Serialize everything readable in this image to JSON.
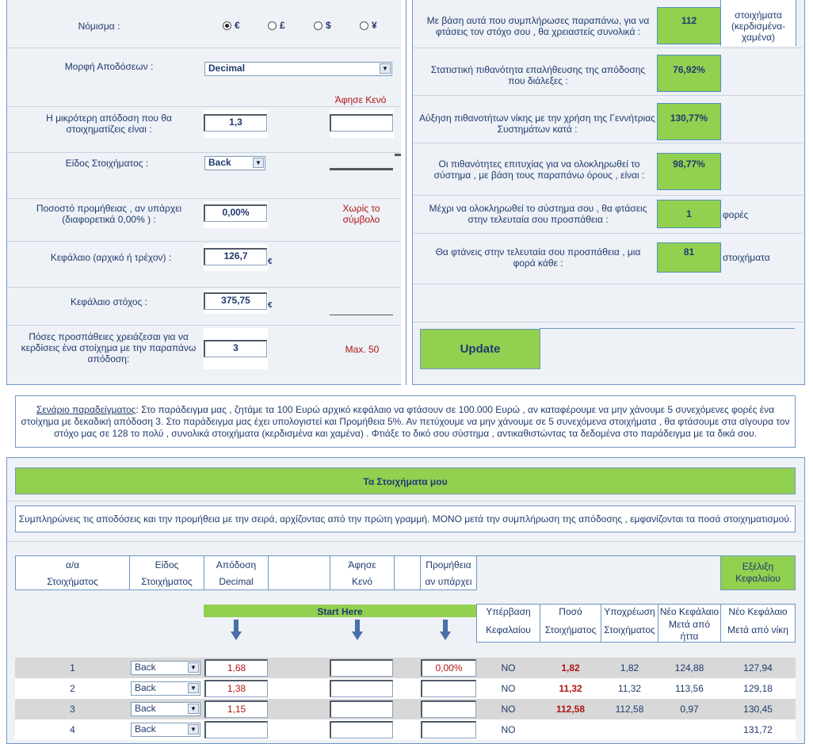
{
  "left_form": {
    "currency_label": "Νόμισμα :",
    "currency_options": [
      "€",
      "£",
      "$",
      "¥"
    ],
    "odds_format_label": "Μορφή Αποδόσεων :",
    "odds_format_value": "Decimal",
    "leave_blank_label": "Άφησε Κενό",
    "min_odds_label": "Η μικρότερη απόδοση που θα στοιχηματίζεις είναι :",
    "min_odds_value": "1,3",
    "bet_type_label": "Είδος Στοιχήματος :",
    "bet_type_value": "Back",
    "commission_label": "Ποσοστό προμήθειας , αν υπάρχει (διαφορετικά 0,00% ) :",
    "commission_value": "0,00%",
    "without_symbol_label": "Χωρίς το σύμβολο",
    "capital_label": "Κεφάλαιο (αρχικό ή τρέχον) :",
    "capital_value": "126,7",
    "target_label": "Κεφάλαιο στόχος :",
    "target_value": "375,75",
    "euro": "€",
    "attempts_label": "Πόσες προσπάθειες χρειάζεσαι για να κερδίσεις ένα στοίχημα με την παραπάνω απόδοση:",
    "attempts_value": "3",
    "max_label": "Max. 50"
  },
  "right_results": {
    "total_label": "Με βάση αυτά που συμπλήρωσες παραπάνω, για να φτάσεις τον στόχο σου , θα χρειαστείς συνολικά :",
    "total_value": "112",
    "total_unit": "στοιχήματα (κερδισμένα-χαμένα)",
    "prob_label": "Στατιστική πιθανότητα επαλήθευσης της απόδοσης που διάλεξες :",
    "prob_value": "76,92%",
    "increase_label": "Αύξηση πιθανοτήτων νίκης με την χρήση της Γεννήτριας Συστημάτων κατά :",
    "increase_value": "130,77%",
    "success_label": "Οι πιθανότητες επιτυχίας για να ολοκληρωθεί το σύστημα , με βάση τους παραπάνω όρους , είναι :",
    "success_value": "98,77%",
    "times_label": "Μέχρι να ολοκληρωθεί το σύστημα σου , θα φτάσεις στην τελευταία σου προσπάθεια :",
    "times_value": "1",
    "times_unit": "φορές",
    "every_label": "Θα φτάνεις στην τελευταία σου προσπάθεια , μια φορά κάθε :",
    "every_value": "81",
    "every_unit": "στοιχήματα",
    "update_label": "Update"
  },
  "example": {
    "title": "Σενάριο παραδείγματος",
    "text": ": Στο παράδειγμα μας , ζητάμε τα 100 Ευρώ αρχικό κεφάλαιο να φτάσουν σε 100.000 Ευρώ , αν καταφέρουμε να μην χάνουμε 5 συνεχόμενες φορές ένα στοίχημα με δεκαδική απόδοση 3. Στο παράδειγμα μας έχει υπολογιστεί και Προμήθεια 5%. Αν πετύχουμε να μην χάνουμε σε 5 συνεχόμενα στοιχήματα , θα φτάσουμε στα σίγουρα τον στόχο μας σε 128 το πολύ , συνολικά στοιχήματα (κερδισμένα και χαμένα) . Φτιάξε το δικό σου σύστημα , αντικαθιστώντας τα δεδομένα στο παράδειγμα με τα δικά σου."
  },
  "bets": {
    "title": "Τα Στοιχήματα μου",
    "instructions": "Συμπληρώνεις τις αποδόσεις και την προμήθεια με την σειρά, αρχίζοντας από την πρώτη γραμμή. ΜΟΝΟ μετά την συμπλήρωση της απόδοσης , εμφανίζονται τα ποσά στοιχηματισμού.",
    "headers": {
      "index": [
        "α/α",
        "Στοιχήματος"
      ],
      "type": [
        "Είδος",
        "Στοιχήματος"
      ],
      "odds": [
        "Απόδοση",
        "Decimal"
      ],
      "blank": [
        "Άφησε",
        "Κενό"
      ],
      "commission": [
        "Προμήθεια",
        "αν υπάρχει"
      ],
      "evolution": "Εξέλιξη Κεφαλαίου"
    },
    "start_here": "Start Here",
    "sub_headers": {
      "exceed": [
        "Υπέρβαση",
        "Κεφαλαίου"
      ],
      "amount": [
        "Ποσό",
        "Στοιχήματος"
      ],
      "liability": [
        "Υποχρέωση",
        "Στοιχήματος"
      ],
      "after_loss": [
        "Νέο Κεφάλαιο",
        "Μετά από",
        "ήττα"
      ],
      "after_win": [
        "Νέο Κεφάλαιο",
        "Μετά από νίκη"
      ]
    },
    "rows": [
      {
        "n": "1",
        "type": "Back",
        "odds": "1,68",
        "blank": "",
        "commission": "0,00%",
        "exceed": "NO",
        "amount": "1,82",
        "liability": "1,82",
        "loss": "124,88",
        "win": "127,94"
      },
      {
        "n": "2",
        "type": "Back",
        "odds": "1,38",
        "blank": "",
        "commission": "",
        "exceed": "NO",
        "amount": "11,32",
        "liability": "11,32",
        "loss": "113,56",
        "win": "129,18"
      },
      {
        "n": "3",
        "type": "Back",
        "odds": "1,15",
        "blank": "",
        "commission": "",
        "exceed": "NO",
        "amount": "112,58",
        "liability": "112,58",
        "loss": "0,97",
        "win": "130,45"
      },
      {
        "n": "4",
        "type": "Back",
        "odds": "",
        "blank": "",
        "commission": "",
        "exceed": "NO",
        "amount": "",
        "liability": "",
        "loss": "",
        "win": "131,72"
      }
    ]
  },
  "colors": {
    "green": "#92d050",
    "border": "#6f96c4",
    "red": "#b01515",
    "text": "#1f3a6e"
  }
}
